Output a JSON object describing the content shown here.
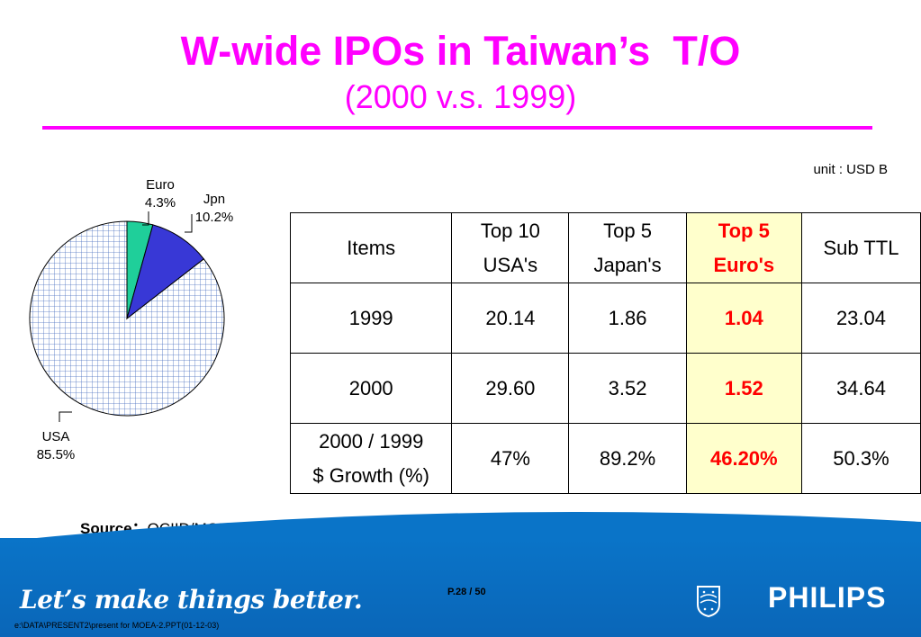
{
  "title": "W-wide IPOs in Taiwan’s  T/O",
  "subtitle": "(2000 v.s. 1999)",
  "unit": "unit : USD B",
  "pie": {
    "slices": [
      {
        "name": "USA",
        "label": "85.5%",
        "value": 85.5,
        "color": "#ffffff",
        "pattern": "grid-blue"
      },
      {
        "name": "Euro",
        "label": "4.3%",
        "value": 4.3,
        "color": "#1fcf9a"
      },
      {
        "name": "Jpn",
        "label": "10.2%",
        "value": 10.2,
        "color": "#3838d6"
      }
    ]
  },
  "table": {
    "headers": [
      [
        "Items"
      ],
      [
        "Top 10",
        "USA's"
      ],
      [
        "Top 5",
        "Japan's"
      ],
      [
        "Top 5",
        "Euro's"
      ],
      [
        "Sub TTL"
      ]
    ],
    "rows": [
      {
        "label": [
          "1999"
        ],
        "values": [
          "20.14",
          "1.86",
          "1.04",
          "23.04"
        ]
      },
      {
        "label": [
          "2000"
        ],
        "values": [
          "29.60",
          "3.52",
          "1.52",
          "34.64"
        ]
      },
      {
        "label": [
          "2000 / 1999",
          "$ Growth (%)"
        ],
        "values": [
          "47%",
          "89.2%",
          "46.20%",
          "50.3%"
        ]
      }
    ],
    "highlight_color": "#ffffcc",
    "highlight_text_color": "#ff0000"
  },
  "source": {
    "label": "Source：",
    "text": "OCIID/MOEA"
  },
  "footer": {
    "slogan": "Let’s make things better.",
    "page": "P.28 / 50",
    "path": "e:\\DATA\\PRESENT2\\present for MOEA-2.PPT(01-12-03)",
    "brand": "PHILIPS",
    "brand_icon": "philips-shield-icon"
  },
  "colors": {
    "title": "#ff00ff",
    "footer_blue": "#0a6ec0"
  }
}
